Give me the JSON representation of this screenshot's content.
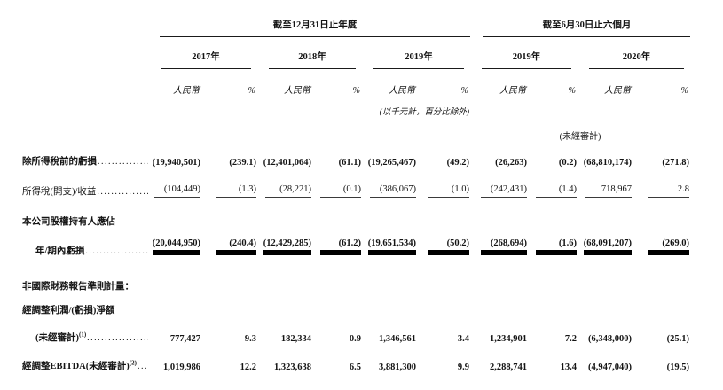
{
  "page": {
    "background": "#ffffff",
    "text_color": "#141414"
  },
  "table": {
    "sections": [
      {
        "title": "截至12月31日止年度",
        "years": [
          "2017年",
          "2018年",
          "2019年"
        ]
      },
      {
        "title": "截至6月30日止六個月",
        "years": [
          "2019年",
          "2020年"
        ]
      }
    ],
    "subheaders": {
      "currency": "人民幣",
      "percent": "%"
    },
    "unit_note": "(以千元計，百分比除外)",
    "unaudited_note": "(未經審計)",
    "leader_dots": "..............................................",
    "rows": [
      {
        "label": "除所得稅前的虧損",
        "sup": "",
        "bold": true,
        "indent": false,
        "leader": true,
        "underline": "none",
        "values": [
          "(19,940,501)",
          "(239.1)",
          "(12,401,064)",
          "(61.1)",
          "(19,265,467)",
          "(49.2)",
          "(26,263)",
          "(0.2)",
          "(68,810,174)",
          "(271.8)"
        ]
      },
      {
        "label": "所得稅(開支)/收益",
        "sup": "",
        "bold": false,
        "indent": false,
        "leader": true,
        "underline": "single",
        "values": [
          "(104,449)",
          "(1.3)",
          "(28,221)",
          "(0.1)",
          "(386,067)",
          "(1.0)",
          "(242,431)",
          "(1.4)",
          "718,967",
          "2.8"
        ]
      },
      {
        "label": "本公司股權持有人應佔",
        "sup": "",
        "bold": true,
        "indent": false,
        "leader": false,
        "underline": "none",
        "values": []
      },
      {
        "label": "年/期內虧損",
        "sup": "",
        "bold": true,
        "indent": true,
        "leader": true,
        "underline": "double",
        "values": [
          "(20,044,950)",
          "(240.4)",
          "(12,429,285)",
          "(61.2)",
          "(19,651,534)",
          "(50.2)",
          "(268,694)",
          "(1.6)",
          "(68,091,207)",
          "(269.0)"
        ]
      },
      {
        "label": "非國際財務報告準則計量：",
        "sup": "",
        "bold": true,
        "indent": false,
        "leader": false,
        "underline": "none",
        "values": []
      },
      {
        "label": "經調整利潤/(虧損)淨額",
        "sup": "",
        "bold": true,
        "indent": false,
        "leader": false,
        "underline": "none",
        "values": []
      },
      {
        "label": "(未經審計)",
        "sup": "(1)",
        "bold": true,
        "indent": true,
        "leader": true,
        "underline": "none",
        "values": [
          "777,427",
          "9.3",
          "182,334",
          "0.9",
          "1,346,561",
          "3.4",
          "1,234,901",
          "7.2",
          "(6,348,000)",
          "(25.1)"
        ]
      },
      {
        "label": "經調整EBITDA(未經審計)",
        "sup": "(2)",
        "bold": true,
        "indent": false,
        "leader": true,
        "underline": "none",
        "values": [
          "1,019,986",
          "12.2",
          "1,323,638",
          "6.5",
          "3,881,300",
          "9.9",
          "2,288,741",
          "13.4",
          "(4,947,040)",
          "(19.5)"
        ]
      }
    ]
  }
}
